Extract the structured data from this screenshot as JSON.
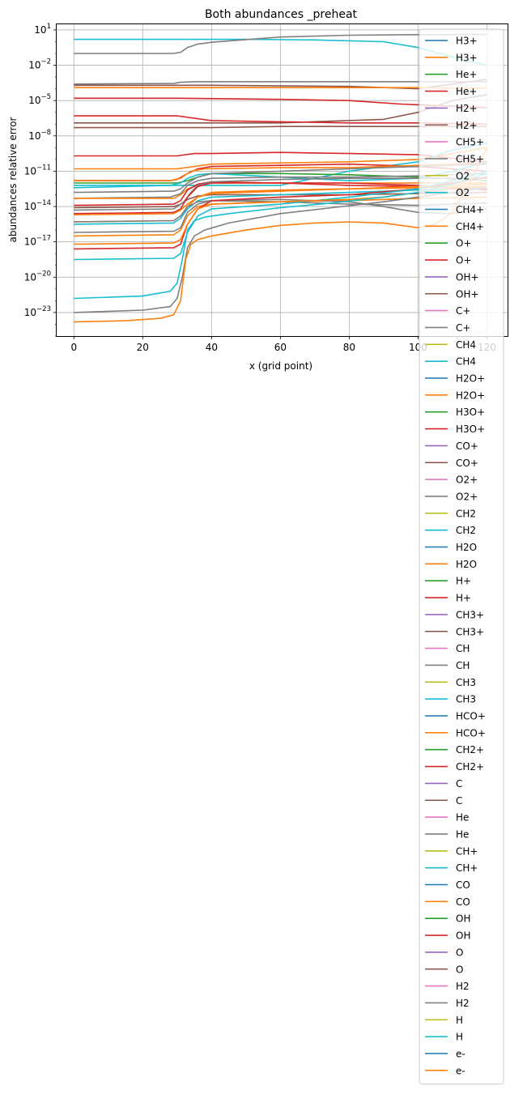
{
  "chart_data": {
    "type": "line",
    "title": "Both abundances _preheat",
    "xlabel": "x (grid point)",
    "ylabel": "abundances relative error",
    "yscale": "log",
    "xlim": [
      -5,
      126
    ],
    "ylim": [
      1e-25,
      30
    ],
    "xticks": [
      0,
      20,
      40,
      60,
      80,
      100,
      120
    ],
    "xtick_labels": [
      "0",
      "20",
      "40",
      "60",
      "80",
      "100",
      "120"
    ],
    "yticks_exp": [
      -23,
      -20,
      -17,
      -14,
      -11,
      -8,
      -5,
      -2,
      1
    ],
    "ytick_base": "10",
    "grid": true,
    "legend_position": "upper-right",
    "legend": [
      {
        "label": "H3+",
        "color": "#1f77b4"
      },
      {
        "label": "H3+",
        "color": "#ff7f0e"
      },
      {
        "label": "He+",
        "color": "#2ca02c"
      },
      {
        "label": "He+",
        "color": "#d62728"
      },
      {
        "label": "H2+",
        "color": "#9467bd"
      },
      {
        "label": "H2+",
        "color": "#8c564b"
      },
      {
        "label": "CH5+",
        "color": "#e377c2"
      },
      {
        "label": "CH5+",
        "color": "#7f7f7f"
      },
      {
        "label": "O2",
        "color": "#bcbd22"
      },
      {
        "label": "O2",
        "color": "#17becf"
      },
      {
        "label": "CH4+",
        "color": "#1f77b4"
      },
      {
        "label": "CH4+",
        "color": "#ff7f0e"
      },
      {
        "label": "O+",
        "color": "#2ca02c"
      },
      {
        "label": "O+",
        "color": "#d62728"
      },
      {
        "label": "OH+",
        "color": "#9467bd"
      },
      {
        "label": "OH+",
        "color": "#8c564b"
      },
      {
        "label": "C+",
        "color": "#e377c2"
      },
      {
        "label": "C+",
        "color": "#7f7f7f"
      },
      {
        "label": "CH4",
        "color": "#bcbd22"
      },
      {
        "label": "CH4",
        "color": "#17becf"
      },
      {
        "label": "H2O+",
        "color": "#1f77b4"
      },
      {
        "label": "H2O+",
        "color": "#ff7f0e"
      },
      {
        "label": "H3O+",
        "color": "#2ca02c"
      },
      {
        "label": "H3O+",
        "color": "#d62728"
      },
      {
        "label": "CO+",
        "color": "#9467bd"
      },
      {
        "label": "CO+",
        "color": "#8c564b"
      },
      {
        "label": "O2+",
        "color": "#e377c2"
      },
      {
        "label": "O2+",
        "color": "#7f7f7f"
      },
      {
        "label": "CH2",
        "color": "#bcbd22"
      },
      {
        "label": "CH2",
        "color": "#17becf"
      },
      {
        "label": "H2O",
        "color": "#1f77b4"
      },
      {
        "label": "H2O",
        "color": "#ff7f0e"
      },
      {
        "label": "H+",
        "color": "#2ca02c"
      },
      {
        "label": "H+",
        "color": "#d62728"
      },
      {
        "label": "CH3+",
        "color": "#9467bd"
      },
      {
        "label": "CH3+",
        "color": "#8c564b"
      },
      {
        "label": "CH",
        "color": "#e377c2"
      },
      {
        "label": "CH",
        "color": "#7f7f7f"
      },
      {
        "label": "CH3",
        "color": "#bcbd22"
      },
      {
        "label": "CH3",
        "color": "#17becf"
      },
      {
        "label": "HCO+",
        "color": "#1f77b4"
      },
      {
        "label": "HCO+",
        "color": "#ff7f0e"
      },
      {
        "label": "CH2+",
        "color": "#2ca02c"
      },
      {
        "label": "CH2+",
        "color": "#d62728"
      },
      {
        "label": "C",
        "color": "#9467bd"
      },
      {
        "label": "C",
        "color": "#8c564b"
      },
      {
        "label": "He",
        "color": "#e377c2"
      },
      {
        "label": "He",
        "color": "#7f7f7f"
      },
      {
        "label": "CH+",
        "color": "#bcbd22"
      },
      {
        "label": "CH+",
        "color": "#17becf"
      },
      {
        "label": "CO",
        "color": "#1f77b4"
      },
      {
        "label": "CO",
        "color": "#ff7f0e"
      },
      {
        "label": "OH",
        "color": "#2ca02c"
      },
      {
        "label": "OH",
        "color": "#d62728"
      },
      {
        "label": "O",
        "color": "#9467bd"
      },
      {
        "label": "O",
        "color": "#8c564b"
      },
      {
        "label": "H2",
        "color": "#e377c2"
      },
      {
        "label": "H2",
        "color": "#7f7f7f"
      },
      {
        "label": "H",
        "color": "#bcbd22"
      },
      {
        "label": "H",
        "color": "#17becf"
      },
      {
        "label": "e-",
        "color": "#1f77b4"
      },
      {
        "label": "e-",
        "color": "#ff7f0e"
      }
    ],
    "visible_series": [
      {
        "color": "#17becf",
        "x": [
          0,
          30,
          50,
          70,
          90,
          100,
          110,
          120
        ],
        "y_log10": [
          0.2,
          0.2,
          0.2,
          0.15,
          0,
          -0.5,
          -1.3,
          -2
        ]
      },
      {
        "color": "#7f7f7f",
        "x": [
          0,
          29,
          31,
          33,
          36,
          40,
          60,
          80,
          100,
          120
        ],
        "y_log10": [
          -1,
          -1,
          -0.9,
          -0.5,
          -0.2,
          -0.05,
          0.4,
          0.55,
          0.6,
          0.62
        ]
      },
      {
        "color": "#7f7f7f",
        "x": [
          0,
          29,
          31,
          35,
          40,
          80,
          120
        ],
        "y_log10": [
          -3.6,
          -3.55,
          -3.45,
          -3.4,
          -3.4,
          -3.4,
          -3.4
        ]
      },
      {
        "color": "#8c564b",
        "x": [
          0,
          40,
          80,
          100,
          110,
          120
        ],
        "y_log10": [
          -3.7,
          -3.7,
          -3.8,
          -4,
          -3.6,
          -3.2
        ]
      },
      {
        "color": "#ff7f0e",
        "x": [
          0,
          40,
          80,
          100,
          110,
          120
        ],
        "y_log10": [
          -3.9,
          -3.9,
          -3.9,
          -3.9,
          -3.95,
          -3.95
        ]
      },
      {
        "color": "#d62728",
        "x": [
          0,
          30,
          60,
          80,
          95,
          120
        ],
        "y_log10": [
          -4.8,
          -4.8,
          -4.9,
          -5,
          -5.3,
          -5.6
        ]
      },
      {
        "color": "#8c564b",
        "x": [
          0,
          60,
          90,
          100,
          110,
          120
        ],
        "y_log10": [
          -6.9,
          -6.9,
          -6.6,
          -6,
          -5,
          -4.5
        ]
      },
      {
        "color": "#d62728",
        "x": [
          0,
          30,
          40,
          60,
          80,
          100,
          120
        ],
        "y_log10": [
          -6.3,
          -6.3,
          -6.7,
          -6.8,
          -6.9,
          -6.9,
          -7
        ]
      },
      {
        "color": "#8c564b",
        "x": [
          0,
          30,
          40,
          60,
          100,
          120
        ],
        "y_log10": [
          -7.3,
          -7.3,
          -7.3,
          -7.2,
          -7.2,
          -7.2
        ]
      },
      {
        "color": "#d62728",
        "x": [
          0,
          30,
          35,
          40,
          60,
          80,
          100,
          120
        ],
        "y_log10": [
          -9.7,
          -9.7,
          -9.5,
          -9.5,
          -9.4,
          -9.5,
          -9.6,
          -10.2
        ]
      },
      {
        "color": "#ff7f0e",
        "x": [
          0,
          30,
          35,
          40,
          60,
          80,
          100,
          110,
          120
        ],
        "y_log10": [
          -10.8,
          -10.8,
          -10.6,
          -10.4,
          -10.3,
          -10.2,
          -10,
          -9.5,
          -9
        ]
      },
      {
        "color": "#17becf",
        "x": [
          0,
          60,
          80,
          100,
          110,
          120
        ],
        "y_log10": [
          -12.2,
          -12.2,
          -11,
          -10.2,
          -9.2,
          -8.6
        ]
      },
      {
        "color": "#d62728",
        "x": [
          0,
          28,
          30,
          33,
          36,
          40,
          60,
          80,
          100,
          120
        ],
        "y_log10": [
          -11.8,
          -11.8,
          -11.7,
          -11.2,
          -10.8,
          -10.6,
          -10.5,
          -10.4,
          -10.6,
          -11
        ]
      },
      {
        "color": "#ff7f0e",
        "x": [
          0,
          28,
          31,
          34,
          38,
          60,
          80,
          100,
          120
        ],
        "y_log10": [
          -11.8,
          -11.8,
          -11.6,
          -11,
          -10.8,
          -10.7,
          -10.7,
          -10.5,
          -10.3
        ]
      },
      {
        "color": "#2ca02c",
        "x": [
          0,
          30,
          33,
          36,
          40,
          60,
          80,
          100,
          120
        ],
        "y_log10": [
          -12,
          -12,
          -11.8,
          -11.5,
          -11.2,
          -11.2,
          -11.3,
          -11.5,
          -11.8
        ]
      },
      {
        "color": "#17becf",
        "x": [
          0,
          28,
          31,
          33,
          36,
          40,
          60,
          80,
          100,
          110,
          120
        ],
        "y_log10": [
          -12.4,
          -12.2,
          -12,
          -11.6,
          -11.3,
          -11.2,
          -11.5,
          -11.8,
          -11.6,
          -11,
          -10.2
        ]
      },
      {
        "color": "#7f7f7f",
        "x": [
          0,
          28,
          31,
          33,
          36,
          40,
          60,
          80,
          100,
          120
        ],
        "y_log10": [
          -13.3,
          -13.2,
          -12.9,
          -12.2,
          -11.8,
          -11.6,
          -11.5,
          -11.5,
          -11.4,
          -11.2
        ]
      },
      {
        "color": "#ff7f0e",
        "x": [
          0,
          29,
          31,
          33,
          36,
          40,
          60,
          80,
          100,
          120
        ],
        "y_log10": [
          -13.3,
          -13.3,
          -13,
          -12.5,
          -12.2,
          -12,
          -12,
          -12,
          -12,
          -12
        ]
      },
      {
        "color": "#d62728",
        "x": [
          0,
          29,
          31,
          33,
          36,
          40,
          60,
          80,
          100,
          120
        ],
        "y_log10": [
          -13.9,
          -13.8,
          -13.5,
          -12.6,
          -12.1,
          -11.9,
          -12,
          -12.2,
          -12.3,
          -12.5
        ]
      },
      {
        "color": "#8c564b",
        "x": [
          0,
          29,
          31,
          33,
          36,
          40,
          60,
          80,
          100,
          120
        ],
        "y_log10": [
          -14.1,
          -14,
          -13.8,
          -13.4,
          -13.1,
          -13,
          -13,
          -13,
          -12.9,
          -12.8
        ]
      },
      {
        "color": "#7f7f7f",
        "x": [
          0,
          29,
          32,
          34,
          36,
          40,
          60,
          80,
          100,
          120
        ],
        "y_log10": [
          -14.3,
          -14.2,
          -13.6,
          -12.8,
          -12.2,
          -11.9,
          -11.7,
          -11.6,
          -11.6,
          -11.6
        ]
      },
      {
        "color": "#d62728",
        "x": [
          0,
          29,
          31,
          33,
          36,
          40,
          60,
          80,
          100,
          120
        ],
        "y_log10": [
          -14.6,
          -14.5,
          -14.2,
          -13.2,
          -12.3,
          -12,
          -12,
          -12,
          -12.2,
          -12.6
        ]
      },
      {
        "color": "#ff7f0e",
        "x": [
          0,
          29,
          31,
          33,
          36,
          40,
          60,
          80,
          100,
          120
        ],
        "y_log10": [
          -15.3,
          -15.2,
          -14.8,
          -14,
          -13.2,
          -12.8,
          -12.6,
          -12.5,
          -12.4,
          -12.3
        ]
      },
      {
        "color": "#17becf",
        "x": [
          0,
          29,
          31,
          33,
          36,
          40,
          60,
          80,
          100,
          120
        ],
        "y_log10": [
          -15.5,
          -15.4,
          -15,
          -14.2,
          -13.5,
          -13.2,
          -13,
          -12.8,
          -12.6,
          -12.4
        ]
      },
      {
        "color": "#7f7f7f",
        "x": [
          0,
          29,
          31,
          33,
          36,
          40,
          60,
          80,
          100,
          120
        ],
        "y_log10": [
          -15.3,
          -15.2,
          -14.8,
          -14,
          -13.6,
          -13.5,
          -13.6,
          -13.8,
          -13.9,
          -13.7
        ]
      },
      {
        "color": "#ff7f0e",
        "x": [
          0,
          29,
          31,
          33,
          36,
          40,
          60,
          80,
          100,
          120
        ],
        "y_log10": [
          -16.5,
          -16.4,
          -16,
          -14.8,
          -14,
          -13.8,
          -13.6,
          -13.5,
          -13.3,
          -13.2
        ]
      },
      {
        "color": "#7f7f7f",
        "x": [
          0,
          29,
          31,
          33,
          36,
          40,
          60,
          80,
          90,
          100,
          110,
          120
        ],
        "y_log10": [
          -16.2,
          -16.1,
          -15.8,
          -14.5,
          -13.8,
          -13.5,
          -13.4,
          -13.6,
          -14,
          -14.5,
          -14.6,
          -14.2
        ]
      },
      {
        "color": "#ff7f0e",
        "x": [
          0,
          29,
          31,
          33,
          36,
          40,
          60,
          80,
          100,
          120
        ],
        "y_log10": [
          -14.7,
          -14.6,
          -14.3,
          -13.8,
          -13.2,
          -12.9,
          -12.7,
          -12.5,
          -12.3,
          -12.1
        ]
      },
      {
        "color": "#d62728",
        "x": [
          0,
          29,
          31,
          33,
          36,
          40,
          60,
          80,
          100,
          110,
          120
        ],
        "y_log10": [
          -17.6,
          -17.5,
          -17.2,
          -15.5,
          -14.2,
          -13.5,
          -13.2,
          -13,
          -12.5,
          -12,
          -11.5
        ]
      },
      {
        "color": "#17becf",
        "x": [
          0,
          29,
          31,
          33,
          36,
          40,
          60,
          80,
          100,
          110,
          120
        ],
        "y_log10": [
          -18.5,
          -18.4,
          -18,
          -16.2,
          -14.8,
          -14.2,
          -13.8,
          -13.2,
          -12.5,
          -11.8,
          -11
        ]
      },
      {
        "color": "#ff7f0e",
        "x": [
          0,
          29,
          31,
          33,
          36,
          40,
          50,
          60,
          80,
          90,
          100,
          110,
          120
        ],
        "y_log10": [
          -17.2,
          -17.1,
          -16.8,
          -15.5,
          -14.2,
          -13.8,
          -13.7,
          -13.6,
          -13.4,
          -13.2,
          -12.8,
          -12.5,
          -12.3
        ]
      },
      {
        "color": "#7f7f7f",
        "x": [
          0,
          29,
          31,
          33,
          36,
          40,
          60,
          80,
          100,
          120
        ],
        "y_log10": [
          -12.8,
          -12.7,
          -12.5,
          -12,
          -11.5,
          -11.2,
          -11,
          -10.8,
          -10.6,
          -10.4
        ]
      },
      {
        "color": "#17becf",
        "x": [
          0,
          20,
          28,
          30,
          31.5,
          33,
          35,
          38,
          45,
          60,
          75,
          90,
          100,
          110,
          120
        ],
        "y_log10": [
          -21.8,
          -21.6,
          -21.2,
          -20.5,
          -18.5,
          -16,
          -15.2,
          -14.9,
          -14.6,
          -14.1,
          -13.7,
          -13.2,
          -12.8,
          -12.1,
          -11.2
        ]
      },
      {
        "color": "#7f7f7f",
        "x": [
          0,
          20,
          28,
          30,
          31.5,
          33,
          35,
          38,
          45,
          60,
          75,
          90,
          100,
          110,
          120
        ],
        "y_log10": [
          -23,
          -22.8,
          -22.5,
          -21.8,
          -20,
          -17.5,
          -16.5,
          -16,
          -15.4,
          -14.6,
          -14.1,
          -13.6,
          -13.2,
          -12.8,
          -12.4
        ]
      },
      {
        "color": "#ff7f0e",
        "x": [
          0,
          15,
          25,
          29,
          31,
          32.5,
          34,
          36,
          40,
          50,
          60,
          70,
          80,
          90,
          100,
          105,
          110,
          115,
          120
        ],
        "y_log10": [
          -23.8,
          -23.7,
          -23.5,
          -23.2,
          -22,
          -18.5,
          -17.2,
          -16.8,
          -16.5,
          -16,
          -15.6,
          -15.4,
          -15.3,
          -15.4,
          -15.8,
          -15.5,
          -14.5,
          -12,
          -9
        ]
      }
    ]
  }
}
